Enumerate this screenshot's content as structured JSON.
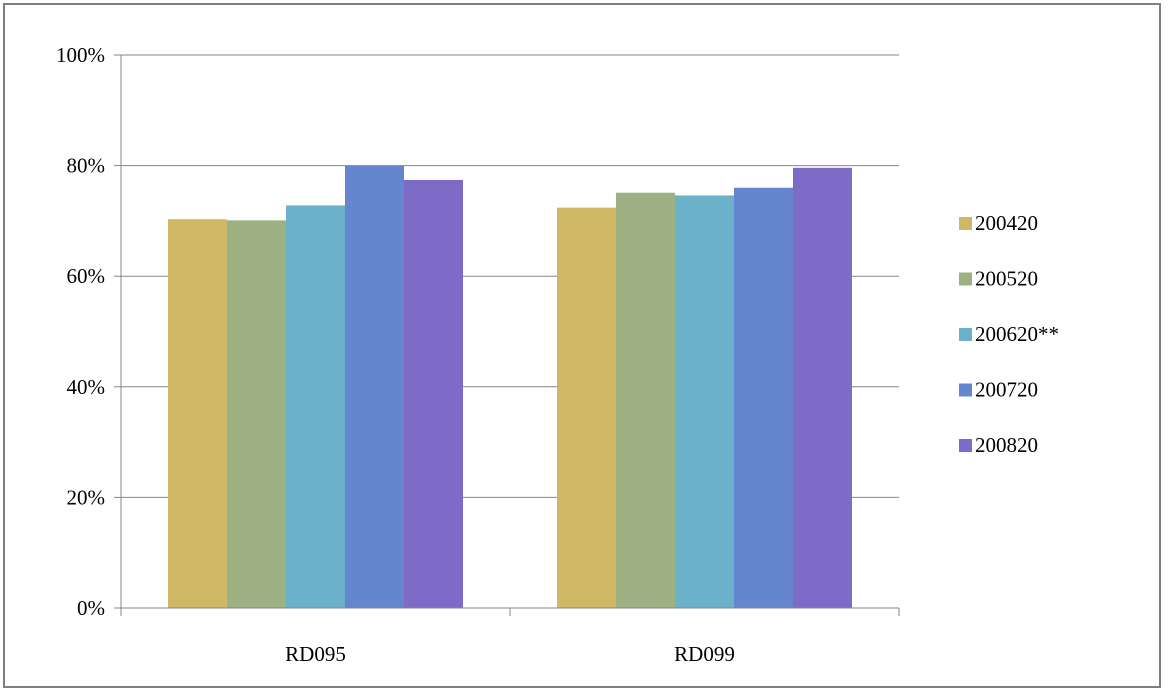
{
  "chart_data": {
    "type": "bar",
    "title": "",
    "xlabel": "",
    "ylabel": "",
    "categories": [
      "RD095",
      "RD099"
    ],
    "series": [
      {
        "name": "200420",
        "color": "#d0b865",
        "values": [
          0.703,
          0.724
        ]
      },
      {
        "name": "200520",
        "color": "#9eb182",
        "values": [
          0.701,
          0.751
        ]
      },
      {
        "name": "200620**",
        "color": "#6ab1c9",
        "values": [
          0.728,
          0.746
        ]
      },
      {
        "name": "200720",
        "color": "#6586cf",
        "values": [
          0.8,
          0.76
        ]
      },
      {
        "name": "200820",
        "color": "#7d6bc7",
        "values": [
          0.774,
          0.796
        ]
      }
    ],
    "ylim": [
      0,
      1
    ],
    "y_ticks": [
      {
        "value": 0,
        "label": "0%"
      },
      {
        "value": 0.2,
        "label": "20%"
      },
      {
        "value": 0.4,
        "label": "40%"
      },
      {
        "value": 0.6,
        "label": "60%"
      },
      {
        "value": 0.8,
        "label": "80%"
      },
      {
        "value": 1.0,
        "label": "100%"
      }
    ],
    "grid": true,
    "legend_position": "right",
    "colors": {
      "grid": "#868686",
      "axis": "#868686",
      "frame": "#7f7f7f"
    }
  }
}
